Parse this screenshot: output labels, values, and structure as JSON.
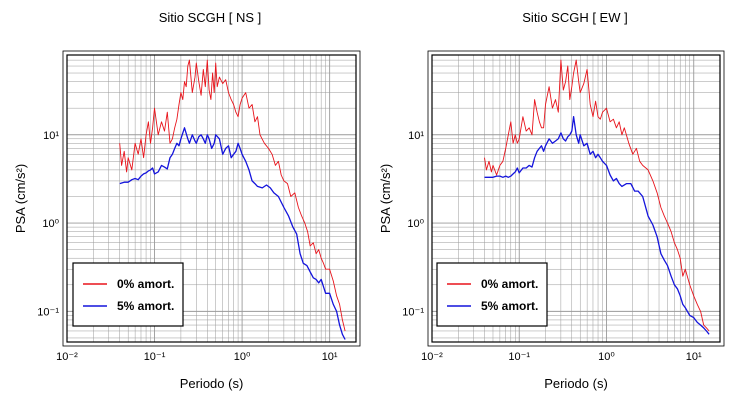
{
  "chart_data": [
    {
      "type": "line",
      "title": "Sitio SCGH [ NS ]",
      "xlabel": "Periodo (s)",
      "ylabel": "PSA (cm/s²)",
      "xscale": "log",
      "yscale": "log",
      "xlim": [
        0.01,
        20
      ],
      "ylim": [
        0.045,
        80
      ],
      "x_ticks": [
        "10⁻²",
        "10⁻¹",
        "10⁰",
        "10¹"
      ],
      "y_ticks": [
        "10⁻¹",
        "10⁰",
        "10¹"
      ],
      "grid": true,
      "legend_position": "bottom-left",
      "series": [
        {
          "name": "0% amort.",
          "color": "#e8141b",
          "x": [
            0.04,
            0.042,
            0.045,
            0.048,
            0.05,
            0.055,
            0.06,
            0.065,
            0.07,
            0.075,
            0.08,
            0.085,
            0.09,
            0.095,
            0.1,
            0.11,
            0.12,
            0.13,
            0.14,
            0.15,
            0.16,
            0.17,
            0.18,
            0.19,
            0.2,
            0.21,
            0.22,
            0.23,
            0.24,
            0.25,
            0.27,
            0.29,
            0.3,
            0.32,
            0.34,
            0.36,
            0.38,
            0.4,
            0.42,
            0.44,
            0.46,
            0.48,
            0.5,
            0.52,
            0.55,
            0.6,
            0.65,
            0.7,
            0.75,
            0.8,
            0.85,
            0.9,
            0.95,
            1.0,
            1.1,
            1.2,
            1.3,
            1.4,
            1.5,
            1.6,
            1.8,
            2.0,
            2.2,
            2.4,
            2.6,
            2.8,
            3.0,
            3.3,
            3.6,
            4.0,
            4.4,
            4.8,
            5.2,
            5.6,
            6.0,
            6.5,
            7.0,
            7.5,
            8.0,
            8.5,
            9.0,
            10.0,
            11.0,
            12.0,
            13.0,
            14.0,
            15.0
          ],
          "y": [
            8,
            4.5,
            6.5,
            3.8,
            5.5,
            4,
            8,
            6,
            9,
            5.5,
            10,
            14,
            8,
            12,
            20,
            10,
            14,
            11,
            18,
            8,
            9,
            12,
            15,
            22,
            30,
            25,
            40,
            35,
            60,
            70,
            30,
            45,
            65,
            40,
            28,
            55,
            35,
            70,
            32,
            25,
            50,
            30,
            65,
            35,
            45,
            38,
            42,
            30,
            25,
            22,
            18,
            16,
            22,
            26,
            30,
            20,
            22,
            14,
            16,
            10,
            8,
            7,
            6,
            4.5,
            5,
            3.5,
            3,
            2.8,
            2,
            2.2,
            1.5,
            1.2,
            1.0,
            0.8,
            0.55,
            0.6,
            0.45,
            0.5,
            0.4,
            0.35,
            0.3,
            0.3,
            0.22,
            0.15,
            0.12,
            0.08,
            0.06
          ]
        },
        {
          "name": "5% amort.",
          "color": "#1414dc",
          "x": [
            0.04,
            0.045,
            0.05,
            0.055,
            0.06,
            0.065,
            0.07,
            0.075,
            0.08,
            0.085,
            0.09,
            0.095,
            0.1,
            0.11,
            0.12,
            0.13,
            0.14,
            0.15,
            0.16,
            0.17,
            0.18,
            0.19,
            0.2,
            0.22,
            0.24,
            0.25,
            0.27,
            0.29,
            0.3,
            0.32,
            0.34,
            0.36,
            0.38,
            0.4,
            0.42,
            0.45,
            0.48,
            0.5,
            0.55,
            0.6,
            0.65,
            0.7,
            0.75,
            0.8,
            0.85,
            0.9,
            0.95,
            1.0,
            1.1,
            1.2,
            1.3,
            1.4,
            1.5,
            1.7,
            1.9,
            2.1,
            2.3,
            2.6,
            3.0,
            3.4,
            3.8,
            4.2,
            4.6,
            5.0,
            5.5,
            6.0,
            6.5,
            7.0,
            7.5,
            8.0,
            9.0,
            10.0,
            11.0,
            12.0,
            13.0,
            14.0,
            15.0
          ],
          "y": [
            2.8,
            2.9,
            2.9,
            3.1,
            3.2,
            3.1,
            3.4,
            3.6,
            3.7,
            3.9,
            4.0,
            4.2,
            3.6,
            3.8,
            4.5,
            4.3,
            4.1,
            5.5,
            6,
            7,
            8,
            7.5,
            9,
            12,
            9,
            8,
            10,
            8.5,
            8,
            9.5,
            10,
            9,
            8,
            10,
            9,
            7,
            8,
            10,
            9,
            6,
            7,
            7.5,
            5.5,
            6,
            6.5,
            8,
            7,
            6,
            5,
            4,
            3,
            2.8,
            2.6,
            2.5,
            2.7,
            2.5,
            2.2,
            2.0,
            1.5,
            1.2,
            0.9,
            0.75,
            0.45,
            0.35,
            0.33,
            0.28,
            0.24,
            0.23,
            0.21,
            0.23,
            0.16,
            0.16,
            0.12,
            0.1,
            0.07,
            0.055,
            0.048
          ]
        }
      ]
    },
    {
      "type": "line",
      "title": "Sitio SCGH [ EW ]",
      "xlabel": "Periodo (s)",
      "ylabel": "PSA (cm/s²)",
      "xscale": "log",
      "yscale": "log",
      "xlim": [
        0.01,
        20
      ],
      "ylim": [
        0.045,
        80
      ],
      "x_ticks": [
        "10⁻²",
        "10⁻¹",
        "10⁰",
        "10¹"
      ],
      "y_ticks": [
        "10⁻¹",
        "10⁰",
        "10¹"
      ],
      "grid": true,
      "legend_position": "bottom-left",
      "series": [
        {
          "name": "0% amort.",
          "color": "#e8141b",
          "x": [
            0.04,
            0.042,
            0.045,
            0.048,
            0.05,
            0.055,
            0.06,
            0.065,
            0.07,
            0.075,
            0.08,
            0.085,
            0.09,
            0.095,
            0.1,
            0.11,
            0.12,
            0.13,
            0.14,
            0.15,
            0.16,
            0.17,
            0.18,
            0.19,
            0.2,
            0.22,
            0.24,
            0.26,
            0.28,
            0.3,
            0.32,
            0.34,
            0.36,
            0.38,
            0.4,
            0.42,
            0.45,
            0.48,
            0.5,
            0.55,
            0.6,
            0.65,
            0.7,
            0.75,
            0.8,
            0.85,
            0.9,
            1.0,
            1.1,
            1.2,
            1.3,
            1.4,
            1.5,
            1.6,
            1.8,
            2.0,
            2.2,
            2.4,
            2.6,
            3.0,
            3.4,
            3.8,
            4.2,
            4.6,
            5.0,
            5.5,
            6.0,
            6.5,
            7.0,
            7.5,
            8.0,
            9.0,
            10.0,
            11.0,
            12.0,
            13.0,
            14.0,
            15.0
          ],
          "y": [
            5.5,
            4,
            5,
            3.8,
            4.5,
            3.5,
            4.5,
            5,
            7,
            10,
            14,
            8,
            10,
            8,
            9,
            16,
            11,
            12,
            10,
            25,
            18,
            14,
            12,
            12,
            22,
            35,
            20,
            25,
            18,
            70,
            32,
            40,
            60,
            25,
            35,
            50,
            70,
            40,
            30,
            38,
            55,
            22,
            16,
            24,
            16,
            15,
            18,
            20,
            14,
            15,
            12,
            14,
            10,
            12,
            8,
            6,
            7,
            5,
            4.5,
            4,
            3,
            2.2,
            1.5,
            1.2,
            1.0,
            0.8,
            0.6,
            0.5,
            0.4,
            0.25,
            0.3,
            0.2,
            0.15,
            0.12,
            0.1,
            0.07,
            0.065,
            0.06
          ]
        },
        {
          "name": "5% amort.",
          "color": "#1414dc",
          "x": [
            0.04,
            0.045,
            0.05,
            0.055,
            0.06,
            0.065,
            0.07,
            0.075,
            0.08,
            0.085,
            0.09,
            0.095,
            0.1,
            0.11,
            0.12,
            0.13,
            0.14,
            0.15,
            0.16,
            0.17,
            0.18,
            0.19,
            0.2,
            0.22,
            0.24,
            0.26,
            0.28,
            0.3,
            0.32,
            0.34,
            0.36,
            0.38,
            0.4,
            0.42,
            0.45,
            0.48,
            0.5,
            0.55,
            0.6,
            0.65,
            0.7,
            0.75,
            0.8,
            0.85,
            0.9,
            1.0,
            1.1,
            1.2,
            1.3,
            1.4,
            1.5,
            1.7,
            1.9,
            2.1,
            2.3,
            2.6,
            3.0,
            3.4,
            3.8,
            4.2,
            4.6,
            5.0,
            5.5,
            6.0,
            6.5,
            7.0,
            7.5,
            8.0,
            9.0,
            10.0,
            11.0,
            12.0,
            13.0,
            14.0,
            15.0
          ],
          "y": [
            3.3,
            3.3,
            3.3,
            3.4,
            3.4,
            3.3,
            3.4,
            3.3,
            3.4,
            3.6,
            3.8,
            4.2,
            3.7,
            4.2,
            4.2,
            4.5,
            4.3,
            5.5,
            6.5,
            7,
            7.5,
            6.5,
            7.5,
            9,
            8,
            8.5,
            9,
            10.5,
            9,
            8.5,
            9.5,
            10,
            11,
            16,
            10,
            8,
            10,
            7.5,
            8,
            6,
            6.5,
            5.5,
            6,
            5.5,
            5,
            4.5,
            3.5,
            3.0,
            3.2,
            2.8,
            2.6,
            2.8,
            2.8,
            2.3,
            2.3,
            2.0,
            1.2,
            0.95,
            0.7,
            0.45,
            0.38,
            0.33,
            0.25,
            0.2,
            0.18,
            0.15,
            0.12,
            0.11,
            0.09,
            0.085,
            0.075,
            0.07,
            0.065,
            0.06,
            0.055
          ]
        }
      ]
    }
  ]
}
